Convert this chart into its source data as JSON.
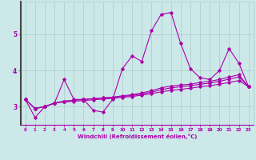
{
  "xlabel": "Windchill (Refroidissement éolien,°C)",
  "background_color": "#cce8e8",
  "grid_color": "#aacccc",
  "line_color": "#aa00aa",
  "axis_color": "#666666",
  "xlim": [
    -0.5,
    23.5
  ],
  "ylim": [
    2.5,
    5.9
  ],
  "yticks": [
    3,
    4,
    5
  ],
  "xticks": [
    0,
    1,
    2,
    3,
    4,
    5,
    6,
    7,
    8,
    9,
    10,
    11,
    12,
    13,
    14,
    15,
    16,
    17,
    18,
    19,
    20,
    21,
    22,
    23
  ],
  "series1_y": [
    3.2,
    2.7,
    3.0,
    3.1,
    3.75,
    3.2,
    3.2,
    2.9,
    2.85,
    3.2,
    4.05,
    4.4,
    4.25,
    5.1,
    5.55,
    5.6,
    4.75,
    4.05,
    3.8,
    3.75,
    4.0,
    4.6,
    4.2,
    3.55
  ],
  "series2_y": [
    3.2,
    2.95,
    3.0,
    3.1,
    3.15,
    3.18,
    3.2,
    3.22,
    3.24,
    3.26,
    3.3,
    3.33,
    3.38,
    3.44,
    3.52,
    3.57,
    3.6,
    3.62,
    3.67,
    3.7,
    3.75,
    3.82,
    3.88,
    3.55
  ],
  "series3_y": [
    3.2,
    2.95,
    3.0,
    3.1,
    3.15,
    3.18,
    3.2,
    3.22,
    3.24,
    3.26,
    3.28,
    3.31,
    3.35,
    3.4,
    3.47,
    3.52,
    3.55,
    3.58,
    3.62,
    3.65,
    3.7,
    3.76,
    3.82,
    3.55
  ],
  "series4_y": [
    3.2,
    2.95,
    3.0,
    3.1,
    3.13,
    3.15,
    3.17,
    3.19,
    3.21,
    3.23,
    3.26,
    3.28,
    3.32,
    3.36,
    3.41,
    3.45,
    3.48,
    3.51,
    3.55,
    3.58,
    3.62,
    3.67,
    3.72,
    3.55
  ]
}
